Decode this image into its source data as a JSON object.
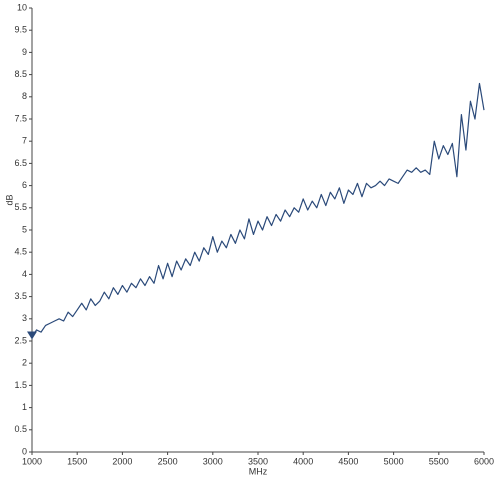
{
  "chart_data": {
    "type": "line",
    "xlabel": "MHz",
    "ylabel": "dB",
    "x": [
      1000,
      1050,
      1100,
      1150,
      1200,
      1250,
      1300,
      1350,
      1400,
      1450,
      1500,
      1550,
      1600,
      1650,
      1700,
      1750,
      1800,
      1850,
      1900,
      1950,
      2000,
      2050,
      2100,
      2150,
      2200,
      2250,
      2300,
      2350,
      2400,
      2450,
      2500,
      2550,
      2600,
      2650,
      2700,
      2750,
      2800,
      2850,
      2900,
      2950,
      3000,
      3050,
      3100,
      3150,
      3200,
      3250,
      3300,
      3350,
      3400,
      3450,
      3500,
      3550,
      3600,
      3650,
      3700,
      3750,
      3800,
      3850,
      3900,
      3950,
      4000,
      4050,
      4100,
      4150,
      4200,
      4250,
      4300,
      4350,
      4400,
      4450,
      4500,
      4550,
      4600,
      4650,
      4700,
      4750,
      4800,
      4850,
      4900,
      4950,
      5000,
      5050,
      5100,
      5150,
      5200,
      5250,
      5300,
      5350,
      5400,
      5450,
      5500,
      5550,
      5600,
      5650,
      5700,
      5750,
      5800,
      5850,
      5900,
      5950,
      6000
    ],
    "series": [
      {
        "name": "dB",
        "color": "#2b4a7a",
        "values": [
          2.6,
          2.75,
          2.7,
          2.85,
          2.9,
          2.95,
          3.0,
          2.95,
          3.15,
          3.05,
          3.2,
          3.35,
          3.2,
          3.45,
          3.3,
          3.4,
          3.6,
          3.45,
          3.7,
          3.55,
          3.75,
          3.6,
          3.8,
          3.7,
          3.9,
          3.75,
          3.95,
          3.8,
          4.2,
          3.9,
          4.25,
          3.95,
          4.3,
          4.1,
          4.35,
          4.2,
          4.5,
          4.3,
          4.6,
          4.45,
          4.85,
          4.5,
          4.75,
          4.6,
          4.9,
          4.7,
          5.0,
          4.8,
          5.25,
          4.9,
          5.2,
          5.0,
          5.3,
          5.1,
          5.35,
          5.2,
          5.45,
          5.3,
          5.5,
          5.4,
          5.7,
          5.45,
          5.65,
          5.5,
          5.8,
          5.55,
          5.85,
          5.7,
          5.95,
          5.6,
          5.9,
          5.8,
          6.05,
          5.75,
          6.05,
          5.95,
          6.0,
          6.1,
          6.0,
          6.15,
          6.1,
          6.05,
          6.2,
          6.35,
          6.3,
          6.4,
          6.3,
          6.35,
          6.25,
          7.0,
          6.6,
          6.9,
          6.7,
          6.95,
          6.2,
          7.6,
          6.8,
          7.9,
          7.5,
          8.3,
          7.7
        ]
      }
    ],
    "xlim": [
      1000,
      6000
    ],
    "xticks": [
      1000,
      1500,
      2000,
      2500,
      3000,
      3500,
      4000,
      4500,
      5000,
      5500,
      6000
    ],
    "ylim": [
      0,
      10
    ],
    "yticks": [
      0,
      0.5,
      1,
      1.5,
      2,
      2.5,
      3,
      3.5,
      4,
      4.5,
      5,
      5.5,
      6,
      6.5,
      7,
      7.5,
      8,
      8.5,
      9,
      9.5,
      10
    ],
    "grid": false
  }
}
